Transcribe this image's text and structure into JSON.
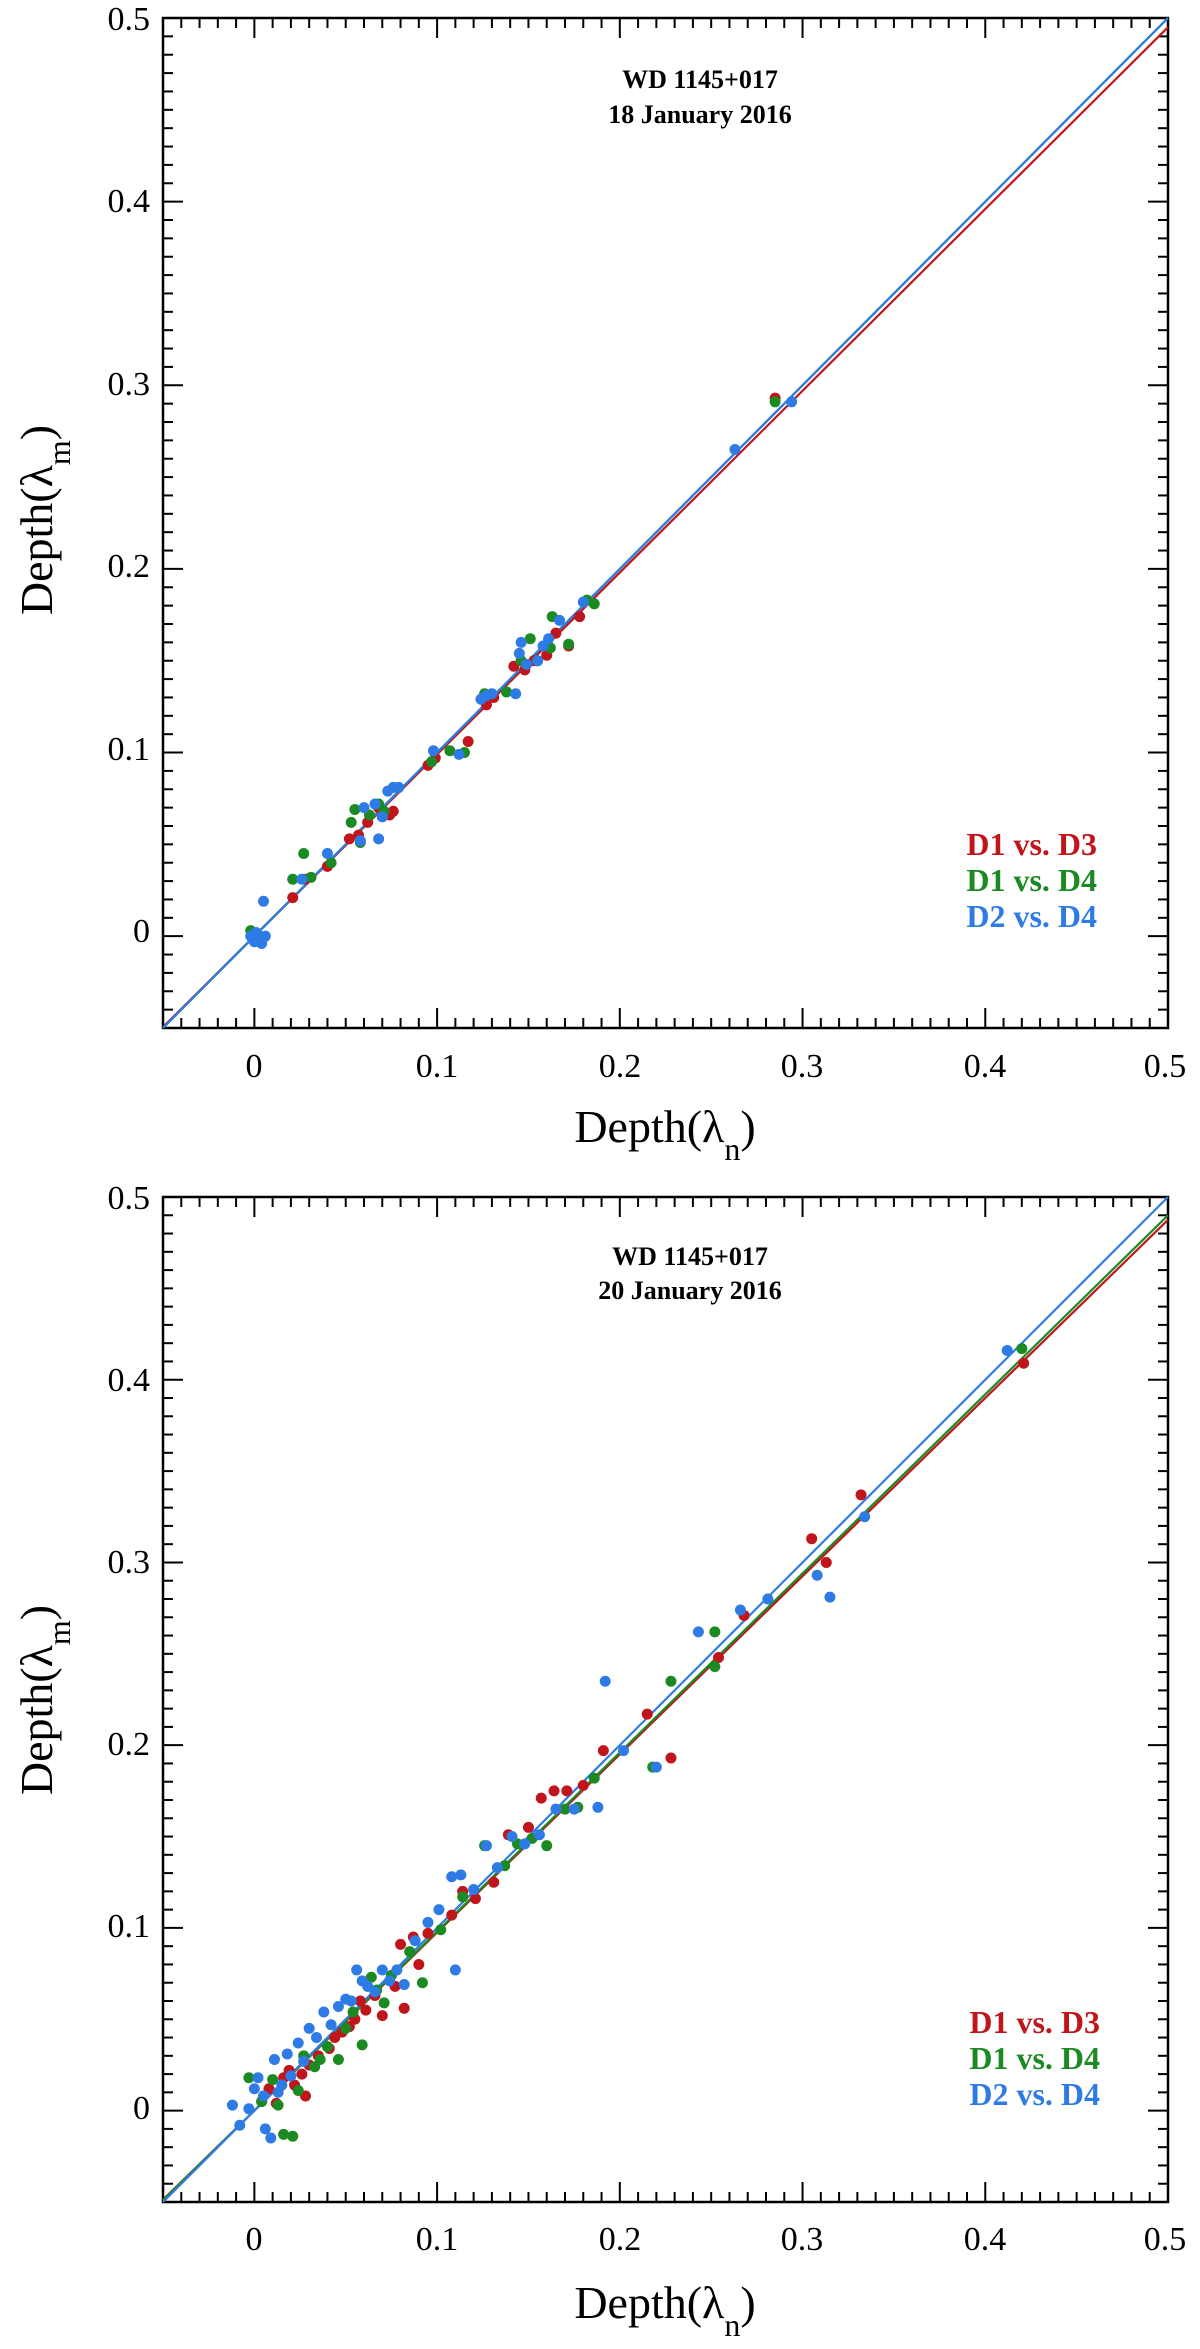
{
  "chart_data": [
    {
      "type": "scatter",
      "title": "WD 1145+017",
      "subtitle": "18 January 2016",
      "xlabel": "Depth(λ",
      "xlabel_sub": "n",
      "ylabel": "Depth(λ",
      "ylabel_sub": "m",
      "label_close": ")",
      "xlim": [
        -0.05,
        0.5
      ],
      "ylim": [
        -0.05,
        0.5
      ],
      "ticks": [
        0,
        0.1,
        0.2,
        0.3,
        0.4,
        0.5
      ],
      "tick_labels": [
        "0",
        "0.1",
        "0.2",
        "0.3",
        "0.4",
        "0.5"
      ],
      "series": [
        {
          "name": "D1 vs. D3",
          "color": "#c0161b",
          "fit_slope": 0.99,
          "points": [
            [
              0.0,
              0.0
            ],
            [
              0.003,
              -0.002
            ],
            [
              0.021,
              0.021
            ],
            [
              0.028,
              0.031
            ],
            [
              0.04,
              0.038
            ],
            [
              0.052,
              0.053
            ],
            [
              0.057,
              0.055
            ],
            [
              0.062,
              0.062
            ],
            [
              0.068,
              0.07
            ],
            [
              0.074,
              0.066
            ],
            [
              0.076,
              0.068
            ],
            [
              0.095,
              0.093
            ],
            [
              0.099,
              0.097
            ],
            [
              0.117,
              0.106
            ],
            [
              0.127,
              0.126
            ],
            [
              0.131,
              0.13
            ],
            [
              0.142,
              0.147
            ],
            [
              0.148,
              0.145
            ],
            [
              0.153,
              0.15
            ],
            [
              0.16,
              0.153
            ],
            [
              0.165,
              0.165
            ],
            [
              0.172,
              0.158
            ],
            [
              0.178,
              0.174
            ],
            [
              0.285,
              0.293
            ]
          ]
        },
        {
          "name": "D1 vs. D4",
          "color": "#1b8a22",
          "fit_slope": 1.0,
          "points": [
            [
              -0.002,
              0.003
            ],
            [
              0.002,
              -0.001
            ],
            [
              0.021,
              0.031
            ],
            [
              0.027,
              0.045
            ],
            [
              0.031,
              0.032
            ],
            [
              0.042,
              0.04
            ],
            [
              0.053,
              0.062
            ],
            [
              0.055,
              0.069
            ],
            [
              0.058,
              0.051
            ],
            [
              0.063,
              0.066
            ],
            [
              0.068,
              0.072
            ],
            [
              0.071,
              0.068
            ],
            [
              0.097,
              0.095
            ],
            [
              0.107,
              0.101
            ],
            [
              0.115,
              0.1
            ],
            [
              0.126,
              0.132
            ],
            [
              0.138,
              0.133
            ],
            [
              0.146,
              0.15
            ],
            [
              0.151,
              0.162
            ],
            [
              0.155,
              0.15
            ],
            [
              0.162,
              0.157
            ],
            [
              0.163,
              0.174
            ],
            [
              0.172,
              0.159
            ],
            [
              0.182,
              0.183
            ],
            [
              0.186,
              0.181
            ],
            [
              0.285,
              0.291
            ]
          ]
        },
        {
          "name": "D2 vs. D4",
          "color": "#2f7be6",
          "fit_slope": 1.0,
          "points": [
            [
              -0.002,
              0.0
            ],
            [
              0.0,
              -0.003
            ],
            [
              0.001,
              0.002
            ],
            [
              0.003,
              0.0
            ],
            [
              0.004,
              -0.004
            ],
            [
              0.006,
              0.0
            ],
            [
              0.005,
              0.019
            ],
            [
              0.026,
              0.031
            ],
            [
              0.04,
              0.045
            ],
            [
              0.058,
              0.052
            ],
            [
              0.06,
              0.07
            ],
            [
              0.066,
              0.072
            ],
            [
              0.068,
              0.053
            ],
            [
              0.07,
              0.065
            ],
            [
              0.073,
              0.079
            ],
            [
              0.076,
              0.081
            ],
            [
              0.079,
              0.081
            ],
            [
              0.098,
              0.101
            ],
            [
              0.112,
              0.099
            ],
            [
              0.124,
              0.129
            ],
            [
              0.127,
              0.131
            ],
            [
              0.13,
              0.132
            ],
            [
              0.143,
              0.132
            ],
            [
              0.146,
              0.16
            ],
            [
              0.145,
              0.154
            ],
            [
              0.149,
              0.148
            ],
            [
              0.155,
              0.15
            ],
            [
              0.158,
              0.158
            ],
            [
              0.161,
              0.162
            ],
            [
              0.167,
              0.172
            ],
            [
              0.18,
              0.182
            ],
            [
              0.263,
              0.265
            ],
            [
              0.294,
              0.291
            ]
          ]
        }
      ],
      "fit_range": [
        -0.05,
        0.5
      ],
      "legend": [
        "D1 vs. D3",
        "D1 vs. D4",
        "D2 vs. D4"
      ],
      "legend_position": "lower-right"
    },
    {
      "type": "scatter",
      "title": "WD 1145+017",
      "subtitle": "20 January 2016",
      "xlabel": "Depth(λ",
      "xlabel_sub": "n",
      "ylabel": "Depth(λ",
      "ylabel_sub": "m",
      "label_close": ")",
      "xlim": [
        -0.05,
        0.5
      ],
      "ylim": [
        -0.05,
        0.5
      ],
      "ticks": [
        0,
        0.1,
        0.2,
        0.3,
        0.4,
        0.5
      ],
      "tick_labels": [
        "0",
        "0.1",
        "0.2",
        "0.3",
        "0.4",
        "0.5"
      ],
      "series": [
        {
          "name": "D1 vs. D3",
          "color": "#c0161b",
          "fit_slope": 0.975,
          "points": [
            [
              0.004,
              0.005
            ],
            [
              0.008,
              0.012
            ],
            [
              0.012,
              0.004
            ],
            [
              0.016,
              0.018
            ],
            [
              0.019,
              0.022
            ],
            [
              0.022,
              0.014
            ],
            [
              0.026,
              0.02
            ],
            [
              0.028,
              0.008
            ],
            [
              0.03,
              0.025
            ],
            [
              0.035,
              0.03
            ],
            [
              0.041,
              0.034
            ],
            [
              0.044,
              0.04
            ],
            [
              0.048,
              0.043
            ],
            [
              0.052,
              0.046
            ],
            [
              0.055,
              0.05
            ],
            [
              0.058,
              0.06
            ],
            [
              0.061,
              0.055
            ],
            [
              0.066,
              0.063
            ],
            [
              0.07,
              0.052
            ],
            [
              0.077,
              0.068
            ],
            [
              0.08,
              0.091
            ],
            [
              0.082,
              0.056
            ],
            [
              0.087,
              0.095
            ],
            [
              0.09,
              0.08
            ],
            [
              0.095,
              0.097
            ],
            [
              0.108,
              0.107
            ],
            [
              0.114,
              0.12
            ],
            [
              0.121,
              0.116
            ],
            [
              0.131,
              0.125
            ],
            [
              0.139,
              0.151
            ],
            [
              0.15,
              0.155
            ],
            [
              0.157,
              0.171
            ],
            [
              0.164,
              0.175
            ],
            [
              0.171,
              0.175
            ],
            [
              0.18,
              0.178
            ],
            [
              0.191,
              0.197
            ],
            [
              0.215,
              0.217
            ],
            [
              0.228,
              0.193
            ],
            [
              0.254,
              0.248
            ],
            [
              0.268,
              0.271
            ],
            [
              0.305,
              0.313
            ],
            [
              0.313,
              0.3
            ],
            [
              0.332,
              0.337
            ],
            [
              0.421,
              0.409
            ]
          ]
        },
        {
          "name": "D1 vs. D4",
          "color": "#1b8a22",
          "fit_slope": 0.98,
          "points": [
            [
              -0.003,
              0.018
            ],
            [
              0.004,
              0.005
            ],
            [
              0.01,
              0.017
            ],
            [
              0.013,
              0.003
            ],
            [
              0.016,
              -0.013
            ],
            [
              0.021,
              -0.014
            ],
            [
              0.024,
              0.011
            ],
            [
              0.027,
              0.03
            ],
            [
              0.033,
              0.024
            ],
            [
              0.036,
              0.028
            ],
            [
              0.04,
              0.035
            ],
            [
              0.046,
              0.028
            ],
            [
              0.05,
              0.045
            ],
            [
              0.054,
              0.054
            ],
            [
              0.059,
              0.036
            ],
            [
              0.064,
              0.073
            ],
            [
              0.067,
              0.066
            ],
            [
              0.071,
              0.059
            ],
            [
              0.075,
              0.074
            ],
            [
              0.085,
              0.087
            ],
            [
              0.092,
              0.07
            ],
            [
              0.102,
              0.099
            ],
            [
              0.114,
              0.117
            ],
            [
              0.126,
              0.145
            ],
            [
              0.137,
              0.134
            ],
            [
              0.144,
              0.146
            ],
            [
              0.152,
              0.149
            ],
            [
              0.16,
              0.145
            ],
            [
              0.17,
              0.165
            ],
            [
              0.177,
              0.166
            ],
            [
              0.186,
              0.182
            ],
            [
              0.218,
              0.188
            ],
            [
              0.228,
              0.235
            ],
            [
              0.252,
              0.243
            ],
            [
              0.252,
              0.262
            ],
            [
              0.42,
              0.417
            ]
          ]
        },
        {
          "name": "D2 vs. D4",
          "color": "#2f7be6",
          "fit_slope": 1.0,
          "points": [
            [
              -0.012,
              0.003
            ],
            [
              -0.008,
              -0.008
            ],
            [
              -0.003,
              0.001
            ],
            [
              0.0,
              0.012
            ],
            [
              0.002,
              0.018
            ],
            [
              0.005,
              0.008
            ],
            [
              0.006,
              -0.01
            ],
            [
              0.009,
              -0.015
            ],
            [
              0.011,
              0.028
            ],
            [
              0.013,
              0.01
            ],
            [
              0.015,
              0.014
            ],
            [
              0.018,
              0.031
            ],
            [
              0.02,
              0.019
            ],
            [
              0.024,
              0.037
            ],
            [
              0.027,
              0.027
            ],
            [
              0.03,
              0.045
            ],
            [
              0.034,
              0.04
            ],
            [
              0.038,
              0.054
            ],
            [
              0.042,
              0.047
            ],
            [
              0.046,
              0.057
            ],
            [
              0.05,
              0.061
            ],
            [
              0.053,
              0.06
            ],
            [
              0.056,
              0.077
            ],
            [
              0.059,
              0.071
            ],
            [
              0.062,
              0.068
            ],
            [
              0.066,
              0.065
            ],
            [
              0.07,
              0.077
            ],
            [
              0.074,
              0.071
            ],
            [
              0.078,
              0.077
            ],
            [
              0.082,
              0.069
            ],
            [
              0.088,
              0.093
            ],
            [
              0.095,
              0.103
            ],
            [
              0.101,
              0.11
            ],
            [
              0.108,
              0.128
            ],
            [
              0.11,
              0.077
            ],
            [
              0.113,
              0.129
            ],
            [
              0.12,
              0.121
            ],
            [
              0.127,
              0.145
            ],
            [
              0.133,
              0.133
            ],
            [
              0.141,
              0.15
            ],
            [
              0.148,
              0.146
            ],
            [
              0.156,
              0.151
            ],
            [
              0.165,
              0.165
            ],
            [
              0.175,
              0.165
            ],
            [
              0.188,
              0.166
            ],
            [
              0.192,
              0.235
            ],
            [
              0.202,
              0.197
            ],
            [
              0.22,
              0.188
            ],
            [
              0.243,
              0.262
            ],
            [
              0.266,
              0.274
            ],
            [
              0.281,
              0.28
            ],
            [
              0.308,
              0.293
            ],
            [
              0.315,
              0.281
            ],
            [
              0.334,
              0.325
            ],
            [
              0.412,
              0.416
            ]
          ]
        }
      ],
      "fit_range": [
        -0.05,
        0.5
      ],
      "legend": [
        "D1 vs. D3",
        "D1 vs. D4",
        "D2 vs. D4"
      ],
      "legend_position": "lower-right"
    }
  ]
}
